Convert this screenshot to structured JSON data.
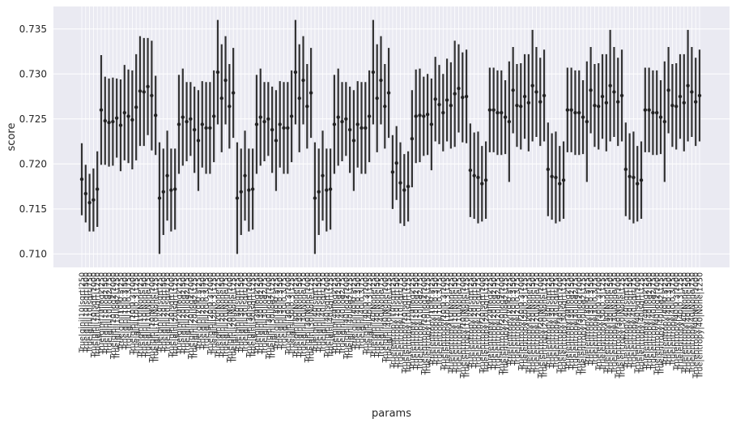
{
  "chart_data": {
    "type": "scatter",
    "style": "point-with-error-bars",
    "xlabel": "params",
    "ylabel": "score",
    "ylim": [
      0.7085,
      0.7375
    ],
    "yticks": [
      0.71,
      0.715,
      0.72,
      0.725,
      0.73,
      0.735
    ],
    "ytick_labels": [
      "0.710",
      "0.715",
      "0.720",
      "0.725",
      "0.730",
      "0.735"
    ],
    "grid": true,
    "colors": {
      "background": "#eaeaf2",
      "grid": "#ffffff",
      "marker": "#222222",
      "errorbar": "#333333"
    },
    "series": [
      {
        "mean": [
          0.7183,
          0.7167,
          0.7157,
          0.716,
          0.7172,
          0.726,
          0.7248,
          0.7246,
          0.7247,
          0.7251,
          0.7243,
          0.7257,
          0.7253,
          0.7249,
          0.7263,
          0.7281,
          0.728,
          0.7286,
          0.7276,
          0.7254,
          0.7162,
          0.7169,
          0.7187,
          0.7171,
          0.7172,
          0.7244,
          0.7252,
          0.7247,
          0.725,
          0.7238,
          0.7226,
          0.7244,
          0.724,
          0.724,
          0.7253,
          0.7302,
          0.7273,
          0.7293,
          0.7264,
          0.7279,
          0.7162,
          0.7169,
          0.7187,
          0.7171,
          0.7172,
          0.7244,
          0.7252,
          0.7247,
          0.725,
          0.7238,
          0.7226,
          0.7244,
          0.724,
          0.724,
          0.7253,
          0.7302,
          0.7273,
          0.7293,
          0.7264,
          0.7279,
          0.7162,
          0.7169,
          0.7187,
          0.7171,
          0.7172,
          0.7244,
          0.7252,
          0.7247,
          0.725,
          0.7238,
          0.7226,
          0.7244,
          0.724,
          0.724,
          0.7253,
          0.7302,
          0.7273,
          0.7293,
          0.7264,
          0.7279,
          0.7191,
          0.7201,
          0.7179,
          0.7171,
          0.7175,
          0.7228,
          0.7253,
          0.7254,
          0.7253,
          0.7255,
          0.7244,
          0.7272,
          0.7266,
          0.7257,
          0.7271,
          0.7265,
          0.7278,
          0.7284,
          0.7274,
          0.7275,
          0.7193,
          0.7187,
          0.7185,
          0.7178,
          0.7182,
          0.726,
          0.726,
          0.7257,
          0.7257,
          0.7252,
          0.7247,
          0.7282,
          0.7265,
          0.7264,
          0.7275,
          0.7268,
          0.7287,
          0.728,
          0.7269,
          0.7276,
          0.7194,
          0.7186,
          0.7185,
          0.7178,
          0.7182,
          0.726,
          0.726,
          0.7257,
          0.7257,
          0.7252,
          0.7247,
          0.7282,
          0.7265,
          0.7264,
          0.7275,
          0.7268,
          0.7287,
          0.728,
          0.7269,
          0.7276,
          0.7194,
          0.7186,
          0.7185,
          0.7178,
          0.7182,
          0.726,
          0.726,
          0.7257,
          0.7257,
          0.7252,
          0.7247,
          0.7282,
          0.7265,
          0.7264,
          0.7275,
          0.7268,
          0.7287,
          0.728,
          0.7269,
          0.7276
        ],
        "err": [
          0.004,
          0.0032,
          0.0032,
          0.0035,
          0.0042,
          0.0061,
          0.0049,
          0.0049,
          0.0049,
          0.0044,
          0.0051,
          0.0053,
          0.0052,
          0.0055,
          0.0059,
          0.0061,
          0.006,
          0.0054,
          0.0061,
          0.0044,
          0.0062,
          0.0048,
          0.005,
          0.0046,
          0.0045,
          0.0055,
          0.0054,
          0.0044,
          0.0041,
          0.0048,
          0.0056,
          0.0048,
          0.0051,
          0.0051,
          0.0051,
          0.0058,
          0.006,
          0.0049,
          0.0047,
          0.005,
          0.0062,
          0.0048,
          0.005,
          0.0046,
          0.0045,
          0.0055,
          0.0054,
          0.0044,
          0.0041,
          0.0048,
          0.0056,
          0.0048,
          0.0051,
          0.0051,
          0.0051,
          0.0058,
          0.006,
          0.0049,
          0.0047,
          0.005,
          0.0062,
          0.0048,
          0.005,
          0.0046,
          0.0045,
          0.0055,
          0.0054,
          0.0044,
          0.0041,
          0.0048,
          0.0056,
          0.0048,
          0.0051,
          0.0051,
          0.0051,
          0.0058,
          0.006,
          0.0049,
          0.0047,
          0.005,
          0.0041,
          0.0041,
          0.0045,
          0.004,
          0.0039,
          0.0054,
          0.0052,
          0.0052,
          0.0044,
          0.0045,
          0.0051,
          0.0047,
          0.0044,
          0.0043,
          0.0046,
          0.0048,
          0.0059,
          0.0049,
          0.005,
          0.0052,
          0.0052,
          0.0048,
          0.0051,
          0.0042,
          0.0043,
          0.0047,
          0.0047,
          0.0047,
          0.0047,
          0.0041,
          0.0067,
          0.0048,
          0.0046,
          0.0048,
          0.0047,
          0.0054,
          0.0062,
          0.005,
          0.0049,
          0.0051,
          0.0052,
          0.0048,
          0.0051,
          0.0042,
          0.0043,
          0.0047,
          0.0047,
          0.0047,
          0.0047,
          0.0041,
          0.0067,
          0.0048,
          0.0046,
          0.0048,
          0.0047,
          0.0054,
          0.0062,
          0.005,
          0.0049,
          0.0051,
          0.0052,
          0.0048,
          0.0051,
          0.0042,
          0.0043,
          0.0047,
          0.0047,
          0.0047,
          0.0047,
          0.0041,
          0.0067,
          0.0048,
          0.0046,
          0.0048,
          0.0047,
          0.0054,
          0.0062,
          0.005,
          0.0049,
          0.0051
        ]
      }
    ],
    "categories": [
      "True|gini|10|sqrt|250",
      "True|gini|10|sqrt|500",
      "True|gini|10|sqrt|750",
      "True|gini|10|sqrt|1000",
      "True|gini|10|sqrt|1250",
      "True|gini|10|log2|250",
      "True|gini|10|log2|500",
      "True|gini|10|log2|750",
      "True|gini|10|log2|1000",
      "True|gini|10|log2|1250",
      "True|gini|10|0.3|250",
      "True|gini|10|0.3|500",
      "True|gini|10|0.3|750",
      "True|gini|10|0.3|1000",
      "True|gini|10|0.3|1250",
      "True|gini|10|None|250",
      "True|gini|10|None|500",
      "True|gini|10|None|750",
      "True|gini|10|None|1000",
      "True|gini|10|None|1250",
      "True|gini|20|sqrt|250",
      "True|gini|20|sqrt|500",
      "True|gini|20|sqrt|750",
      "True|gini|20|sqrt|1000",
      "True|gini|20|sqrt|1250",
      "True|gini|20|log2|250",
      "True|gini|20|log2|500",
      "True|gini|20|log2|750",
      "True|gini|20|log2|1000",
      "True|gini|20|log2|1250",
      "True|gini|20|0.3|250",
      "True|gini|20|0.3|500",
      "True|gini|20|0.3|750",
      "True|gini|20|0.3|1000",
      "True|gini|20|0.3|1250",
      "True|gini|20|None|250",
      "True|gini|20|None|500",
      "True|gini|20|None|750",
      "True|gini|20|None|1000",
      "True|gini|20|None|1250",
      "True|gini|30|sqrt|250",
      "True|gini|30|sqrt|500",
      "True|gini|30|sqrt|750",
      "True|gini|30|sqrt|1000",
      "True|gini|30|sqrt|1250",
      "True|gini|30|log2|250",
      "True|gini|30|log2|500",
      "True|gini|30|log2|750",
      "True|gini|30|log2|1000",
      "True|gini|30|log2|1250",
      "True|gini|30|0.3|250",
      "True|gini|30|0.3|500",
      "True|gini|30|0.3|750",
      "True|gini|30|0.3|1000",
      "True|gini|30|0.3|1250",
      "True|gini|30|None|250",
      "True|gini|30|None|500",
      "True|gini|30|None|750",
      "True|gini|30|None|1000",
      "True|gini|30|None|1250",
      "True|gini|40|sqrt|250",
      "True|gini|40|sqrt|500",
      "True|gini|40|sqrt|750",
      "True|gini|40|sqrt|1000",
      "True|gini|40|sqrt|1250",
      "True|gini|40|log2|250",
      "True|gini|40|log2|500",
      "True|gini|40|log2|750",
      "True|gini|40|log2|1000",
      "True|gini|40|log2|1250",
      "True|gini|40|0.3|250",
      "True|gini|40|0.3|500",
      "True|gini|40|0.3|750",
      "True|gini|40|0.3|1000",
      "True|gini|40|0.3|1250",
      "True|gini|40|None|250",
      "True|gini|40|None|500",
      "True|gini|40|None|750",
      "True|gini|40|None|1000",
      "True|gini|40|None|1250",
      "True|entropy|10|sqrt|250",
      "True|entropy|10|sqrt|500",
      "True|entropy|10|sqrt|750",
      "True|entropy|10|sqrt|1000",
      "True|entropy|10|sqrt|1250",
      "True|entropy|10|log2|250",
      "True|entropy|10|log2|500",
      "True|entropy|10|log2|750",
      "True|entropy|10|log2|1000",
      "True|entropy|10|log2|1250",
      "True|entropy|10|0.3|250",
      "True|entropy|10|0.3|500",
      "True|entropy|10|0.3|750",
      "True|entropy|10|0.3|1000",
      "True|entropy|10|0.3|1250",
      "True|entropy|10|None|250",
      "True|entropy|10|None|500",
      "True|entropy|10|None|750",
      "True|entropy|10|None|1000",
      "True|entropy|10|None|1250",
      "True|entropy|20|sqrt|250",
      "True|entropy|20|sqrt|500",
      "True|entropy|20|sqrt|750",
      "True|entropy|20|sqrt|1000",
      "True|entropy|20|sqrt|1250",
      "True|entropy|20|log2|250",
      "True|entropy|20|log2|500",
      "True|entropy|20|log2|750",
      "True|entropy|20|log2|1000",
      "True|entropy|20|log2|1250",
      "True|entropy|20|0.3|250",
      "True|entropy|20|0.3|500",
      "True|entropy|20|0.3|750",
      "True|entropy|20|0.3|1000",
      "True|entropy|20|0.3|1250",
      "True|entropy|20|None|250",
      "True|entropy|20|None|500",
      "True|entropy|20|None|750",
      "True|entropy|20|None|1000",
      "True|entropy|20|None|1250",
      "True|entropy|30|sqrt|250",
      "True|entropy|30|sqrt|500",
      "True|entropy|30|sqrt|750",
      "True|entropy|30|sqrt|1000",
      "True|entropy|30|sqrt|1250",
      "True|entropy|30|log2|250",
      "True|entropy|30|log2|500",
      "True|entropy|30|log2|750",
      "True|entropy|30|log2|1000",
      "True|entropy|30|log2|1250",
      "True|entropy|30|0.3|250",
      "True|entropy|30|0.3|500",
      "True|entropy|30|0.3|750",
      "True|entropy|30|0.3|1000",
      "True|entropy|30|0.3|1250",
      "True|entropy|30|None|250",
      "True|entropy|30|None|500",
      "True|entropy|30|None|750",
      "True|entropy|30|None|1000",
      "True|entropy|30|None|1250",
      "True|entropy|40|sqrt|250",
      "True|entropy|40|sqrt|500",
      "True|entropy|40|sqrt|750",
      "True|entropy|40|sqrt|1000",
      "True|entropy|40|sqrt|1250",
      "True|entropy|40|log2|250",
      "True|entropy|40|log2|500",
      "True|entropy|40|log2|750",
      "True|entropy|40|log2|1000",
      "True|entropy|40|log2|1250",
      "True|entropy|40|0.3|250",
      "True|entropy|40|0.3|500",
      "True|entropy|40|0.3|750",
      "True|entropy|40|0.3|1000",
      "True|entropy|40|0.3|1250",
      "True|entropy|40|None|250",
      "True|entropy|40|None|500",
      "True|entropy|40|None|750",
      "True|entropy|40|None|1000",
      "True|entropy|40|None|1250"
    ]
  }
}
